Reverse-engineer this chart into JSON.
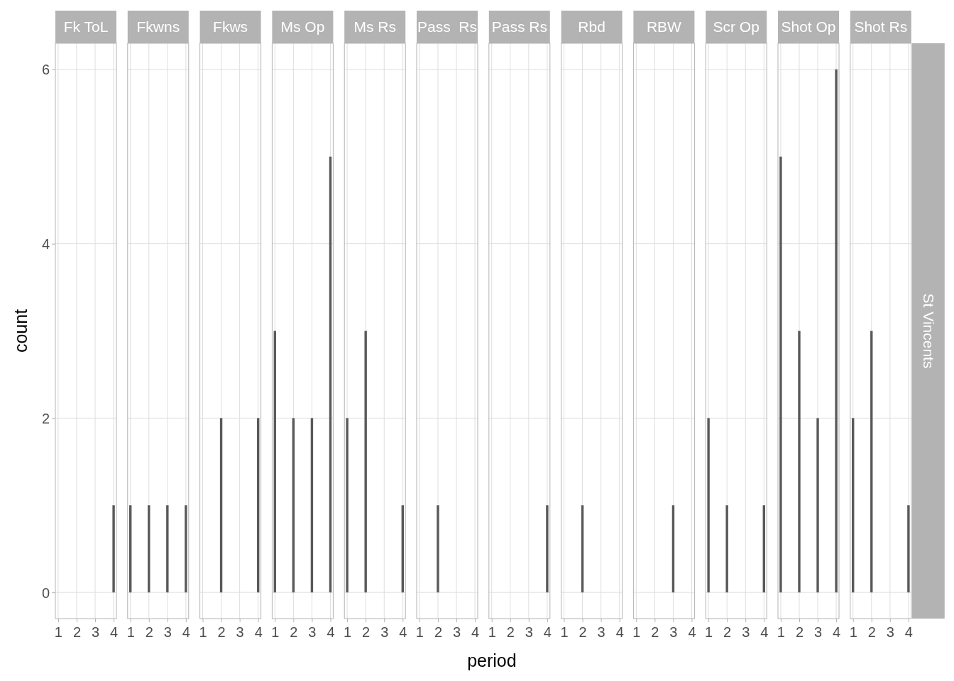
{
  "chart_data": [
    {
      "type": "bar",
      "title": "Fk ToL",
      "ylabel": "count",
      "x": [
        4
      ],
      "values": [
        1
      ],
      "color": "#595959",
      "xlim": [
        0.85,
        4.15
      ],
      "xticks": [
        1,
        2,
        3,
        4
      ],
      "ylim": [
        -0.3,
        6.3
      ],
      "yticks": [
        0,
        2,
        4,
        6
      ],
      "grid": true
    },
    {
      "type": "bar",
      "title": "Fkwns",
      "x": [
        1,
        2,
        3,
        4
      ],
      "values": [
        1,
        1,
        1,
        1
      ],
      "color": "#595959",
      "xlim": [
        0.85,
        4.15
      ],
      "xticks": [
        1,
        2,
        3,
        4
      ],
      "ylim": [
        -0.3,
        6.3
      ],
      "yticks": [
        0,
        2,
        4,
        6
      ],
      "grid": true,
      "tick_labels": "x"
    },
    {
      "type": "bar",
      "title": "Fkws",
      "x": [
        2,
        4
      ],
      "values": [
        2,
        2
      ],
      "color": "#595959",
      "xlim": [
        0.85,
        4.15
      ],
      "xticks": [
        1,
        2,
        3,
        4
      ],
      "ylim": [
        -0.3,
        6.3
      ],
      "yticks": [
        0,
        2,
        4,
        6
      ],
      "grid": true,
      "tick_labels": "x"
    },
    {
      "type": "bar",
      "title": "Ms Op",
      "x": [
        1,
        2,
        3,
        4
      ],
      "values": [
        3,
        2,
        2,
        5
      ],
      "color": "#595959",
      "xlim": [
        0.85,
        4.15
      ],
      "xticks": [
        1,
        2,
        3,
        4
      ],
      "ylim": [
        -0.3,
        6.3
      ],
      "yticks": [
        0,
        2,
        4,
        6
      ],
      "grid": true,
      "tick_labels": "x"
    },
    {
      "type": "bar",
      "title": "Ms Rs",
      "x": [
        1,
        2,
        4
      ],
      "values": [
        2,
        3,
        1
      ],
      "color": "#595959",
      "xlim": [
        0.85,
        4.15
      ],
      "xticks": [
        1,
        2,
        3,
        4
      ],
      "ylim": [
        -0.3,
        6.3
      ],
      "yticks": [
        0,
        2,
        4,
        6
      ],
      "grid": true,
      "tick_labels": "x"
    },
    {
      "type": "bar",
      "title": "Pass  Rs",
      "x": [
        2
      ],
      "values": [
        1
      ],
      "color": "#595959",
      "xlim": [
        0.85,
        4.15
      ],
      "xticks": [
        1,
        2,
        3,
        4
      ],
      "ylim": [
        -0.3,
        6.3
      ],
      "yticks": [
        0,
        2,
        4,
        6
      ],
      "grid": true,
      "tick_labels": "x"
    },
    {
      "type": "bar",
      "title": "Pass Rs",
      "xlabel": "period",
      "x": [
        4
      ],
      "values": [
        1
      ],
      "color": "#595959",
      "xlim": [
        0.85,
        4.15
      ],
      "xticks": [
        1,
        2,
        3,
        4
      ],
      "ylim": [
        -0.3,
        6.3
      ],
      "yticks": [
        0,
        2,
        4,
        6
      ],
      "grid": true,
      "tick_labels": "x"
    },
    {
      "type": "bar",
      "title": "Rbd",
      "x": [
        2
      ],
      "values": [
        1
      ],
      "color": "#595959",
      "xlim": [
        0.85,
        4.15
      ],
      "xticks": [
        1,
        2,
        3,
        4
      ],
      "ylim": [
        -0.3,
        6.3
      ],
      "yticks": [
        0,
        2,
        4,
        6
      ],
      "grid": true,
      "tick_labels": "x"
    },
    {
      "type": "bar",
      "title": "RBW",
      "x": [
        3
      ],
      "values": [
        1
      ],
      "color": "#595959",
      "xlim": [
        0.85,
        4.15
      ],
      "xticks": [
        1,
        2,
        3,
        4
      ],
      "ylim": [
        -0.3,
        6.3
      ],
      "yticks": [
        0,
        2,
        4,
        6
      ],
      "grid": true,
      "tick_labels": "x"
    },
    {
      "type": "bar",
      "title": "Scr Op",
      "x": [
        1,
        2,
        4
      ],
      "values": [
        2,
        1,
        1
      ],
      "color": "#595959",
      "xlim": [
        0.85,
        4.15
      ],
      "xticks": [
        1,
        2,
        3,
        4
      ],
      "ylim": [
        -0.3,
        6.3
      ],
      "yticks": [
        0,
        2,
        4,
        6
      ],
      "grid": true,
      "tick_labels": "x"
    },
    {
      "type": "bar",
      "title": "Shot Op",
      "x": [
        1,
        2,
        3,
        4
      ],
      "values": [
        5,
        3,
        2,
        6
      ],
      "color": "#595959",
      "xlim": [
        0.85,
        4.15
      ],
      "xticks": [
        1,
        2,
        3,
        4
      ],
      "ylim": [
        -0.3,
        6.3
      ],
      "yticks": [
        0,
        2,
        4,
        6
      ],
      "grid": true,
      "tick_labels": "x"
    },
    {
      "type": "bar",
      "title": "Shot Rs",
      "x": [
        1,
        2,
        4
      ],
      "values": [
        2,
        3,
        1
      ],
      "color": "#595959",
      "xlim": [
        0.85,
        4.15
      ],
      "xticks": [
        1,
        2,
        3,
        4
      ],
      "ylim": [
        -0.3,
        6.3
      ],
      "yticks": [
        0,
        2,
        4,
        6
      ],
      "grid": true,
      "tick_labels": "x",
      "annotations": [
        "St Vincents"
      ]
    }
  ]
}
